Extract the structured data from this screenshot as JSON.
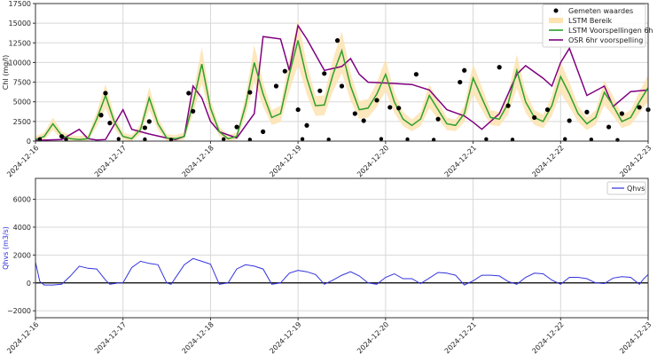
{
  "chart_data": [
    {
      "type": "line",
      "title": "",
      "xlabel": "",
      "ylabel": "Chl (mg/l)",
      "ylim": [
        0,
        17500
      ],
      "xlim": [
        "2024-12-16",
        "2024-12-23"
      ],
      "grid": true,
      "legend_position": "upper right",
      "x_ticks": [
        "2024-12-16",
        "2024-12-17",
        "2024-12-18",
        "2024-12-19",
        "2024-12-20",
        "2024-12-21",
        "2024-12-22",
        "2024-12-23"
      ],
      "y_ticks": [
        0,
        2500,
        5000,
        7500,
        10000,
        12500,
        15000,
        17500
      ],
      "legend": [
        "Gemeten waardes",
        "LSTM Bereik",
        "LSTM Voorspellingen 6h",
        "OSR 6hr voorspelling"
      ],
      "colors": {
        "measured": "#000000",
        "range": "#fde3b0",
        "lstm": "#2ca02c",
        "osr": "#800080"
      },
      "series": [
        {
          "name": "LSTM Voorspellingen 6h",
          "x_days": [
            0,
            0.1,
            0.2,
            0.3,
            0.4,
            0.5,
            0.6,
            0.7,
            0.8,
            0.9,
            1.0,
            1.1,
            1.2,
            1.3,
            1.4,
            1.5,
            1.6,
            1.7,
            1.8,
            1.9,
            2.0,
            2.1,
            2.2,
            2.3,
            2.4,
            2.5,
            2.6,
            2.7,
            2.8,
            2.9,
            3.0,
            3.1,
            3.2,
            3.3,
            3.4,
            3.5,
            3.6,
            3.7,
            3.8,
            3.9,
            4.0,
            4.1,
            4.2,
            4.3,
            4.4,
            4.5,
            4.6,
            4.7,
            4.8,
            4.9,
            5.0,
            5.1,
            5.2,
            5.3,
            5.4,
            5.5,
            5.6,
            5.7,
            5.8,
            5.9,
            6.0,
            6.1,
            6.2,
            6.3,
            6.4,
            6.5,
            6.6,
            6.7,
            6.8,
            6.9,
            7.0
          ],
          "values": [
            200,
            600,
            2200,
            700,
            300,
            200,
            300,
            2800,
            5800,
            2500,
            600,
            300,
            1500,
            5500,
            2200,
            400,
            300,
            600,
            4800,
            9800,
            4200,
            1200,
            300,
            600,
            4500,
            10000,
            6000,
            3000,
            3500,
            8500,
            12800,
            8000,
            4500,
            4600,
            8500,
            11500,
            7000,
            4000,
            4200,
            6000,
            8500,
            5000,
            2800,
            2000,
            2800,
            5800,
            4000,
            2200,
            2000,
            3500,
            8000,
            5500,
            3000,
            2800,
            4800,
            9000,
            5000,
            3000,
            2500,
            4500,
            8200,
            6000,
            3500,
            2200,
            3000,
            6200,
            4500,
            2500,
            3000,
            5000,
            6800
          ]
        },
        {
          "name": "OSR 6hr voorspelling",
          "x_days": [
            0,
            0.3,
            0.5,
            0.6,
            0.7,
            0.8,
            1.0,
            1.1,
            1.3,
            1.5,
            1.6,
            1.7,
            1.8,
            1.9,
            2.0,
            2.1,
            2.3,
            2.5,
            2.6,
            2.8,
            2.9,
            3.0,
            3.1,
            3.3,
            3.5,
            3.6,
            3.7,
            3.8,
            4.0,
            4.3,
            4.5,
            4.7,
            4.9,
            5.0,
            5.1,
            5.3,
            5.5,
            5.6,
            5.8,
            5.9,
            6.0,
            6.1,
            6.3,
            6.5,
            6.6,
            6.8,
            7.0
          ],
          "values": [
            100,
            200,
            1500,
            300,
            150,
            200,
            4000,
            1500,
            900,
            400,
            200,
            600,
            7000,
            5500,
            2500,
            1200,
            400,
            3500,
            13300,
            13000,
            9000,
            14700,
            13000,
            9000,
            9500,
            10500,
            8500,
            7500,
            7400,
            7200,
            6500,
            4000,
            3200,
            2400,
            1500,
            3500,
            8500,
            9600,
            8000,
            7000,
            10000,
            11800,
            5800,
            7000,
            4400,
            6300,
            6500
          ]
        }
      ],
      "measured_points_sample": [
        {
          "day": 0.3,
          "value": 600
        },
        {
          "day": 0.75,
          "value": 3300
        },
        {
          "day": 0.8,
          "value": 6100
        },
        {
          "day": 0.85,
          "value": 2300
        },
        {
          "day": 1.25,
          "value": 1700
        },
        {
          "day": 1.3,
          "value": 2500
        },
        {
          "day": 1.8,
          "value": 3800
        },
        {
          "day": 1.75,
          "value": 6100
        },
        {
          "day": 2.3,
          "value": 1800
        },
        {
          "day": 2.45,
          "value": 6200
        },
        {
          "day": 2.6,
          "value": 1200
        },
        {
          "day": 2.75,
          "value": 7000
        },
        {
          "day": 2.85,
          "value": 8900
        },
        {
          "day": 3.0,
          "value": 4000
        },
        {
          "day": 3.1,
          "value": 2000
        },
        {
          "day": 3.25,
          "value": 6400
        },
        {
          "day": 3.3,
          "value": 8600
        },
        {
          "day": 3.45,
          "value": 12800
        },
        {
          "day": 3.5,
          "value": 7000
        },
        {
          "day": 3.65,
          "value": 3500
        },
        {
          "day": 3.75,
          "value": 2600
        },
        {
          "day": 3.9,
          "value": 5200
        },
        {
          "day": 4.05,
          "value": 4300
        },
        {
          "day": 4.15,
          "value": 4200
        },
        {
          "day": 4.35,
          "value": 8500
        },
        {
          "day": 4.6,
          "value": 2800
        },
        {
          "day": 4.85,
          "value": 7500
        },
        {
          "day": 4.9,
          "value": 9000
        },
        {
          "day": 5.3,
          "value": 9400
        },
        {
          "day": 5.4,
          "value": 4500
        },
        {
          "day": 5.7,
          "value": 3000
        },
        {
          "day": 5.85,
          "value": 4000
        },
        {
          "day": 6.1,
          "value": 2600
        },
        {
          "day": 6.3,
          "value": 3700
        },
        {
          "day": 6.55,
          "value": 1800
        },
        {
          "day": 6.7,
          "value": 3500
        },
        {
          "day": 6.9,
          "value": 4300
        },
        {
          "day": 7.0,
          "value": 4000
        }
      ]
    },
    {
      "type": "line",
      "title": "",
      "xlabel": "",
      "ylabel": "Qhvs (m3/s)",
      "ylim": [
        -2500,
        7500
      ],
      "xlim": [
        "2024-12-16",
        "2024-12-23"
      ],
      "grid": true,
      "legend_position": "upper right",
      "x_ticks": [
        "2024-12-16",
        "2024-12-17",
        "2024-12-18",
        "2024-12-19",
        "2024-12-20",
        "2024-12-21",
        "2024-12-22",
        "2024-12-23"
      ],
      "y_ticks": [
        -2000,
        0,
        2000,
        4000,
        6000
      ],
      "legend": [
        "Qhvs"
      ],
      "colors": {
        "qhvs": "#3333dd",
        "zero_line": "#000000"
      },
      "series": [
        {
          "name": "Qhvs",
          "x_days": [
            0,
            0.05,
            0.1,
            0.2,
            0.3,
            0.4,
            0.5,
            0.6,
            0.7,
            0.8,
            0.85,
            0.95,
            1.0,
            1.1,
            1.2,
            1.3,
            1.4,
            1.5,
            1.55,
            1.7,
            1.8,
            1.9,
            2.0,
            2.1,
            2.2,
            2.3,
            2.4,
            2.5,
            2.6,
            2.7,
            2.8,
            2.9,
            3.0,
            3.1,
            3.2,
            3.3,
            3.4,
            3.5,
            3.6,
            3.7,
            3.8,
            3.9,
            4.0,
            4.1,
            4.2,
            4.3,
            4.4,
            4.5,
            4.6,
            4.7,
            4.8,
            4.9,
            5.0,
            5.1,
            5.2,
            5.3,
            5.4,
            5.5,
            5.6,
            5.7,
            5.8,
            5.9,
            6.0,
            6.1,
            6.2,
            6.3,
            6.4,
            6.5,
            6.6,
            6.7,
            6.8,
            6.9,
            6.95,
            7.0
          ],
          "values": [
            1500,
            100,
            -150,
            -150,
            -100,
            500,
            1200,
            1050,
            1000,
            200,
            -100,
            0,
            0,
            1100,
            1550,
            1400,
            1300,
            0,
            -100,
            1300,
            1750,
            1550,
            1350,
            -100,
            0,
            1000,
            1300,
            1200,
            1000,
            -100,
            0,
            700,
            900,
            800,
            600,
            -100,
            200,
            550,
            800,
            500,
            0,
            -100,
            400,
            650,
            300,
            300,
            -50,
            350,
            750,
            700,
            550,
            -150,
            150,
            550,
            550,
            500,
            100,
            -100,
            400,
            700,
            650,
            200,
            -100,
            400,
            400,
            300,
            0,
            -50,
            350,
            450,
            400,
            -100,
            300,
            600
          ]
        }
      ]
    }
  ]
}
